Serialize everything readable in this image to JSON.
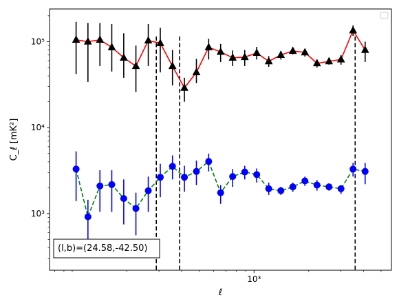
{
  "chart_data": {
    "type": "scatter",
    "xscale": "log",
    "yscale": "log",
    "xlabel": "ℓ",
    "ylabel": "C_ℓ  [mK²]",
    "xlim": [
      75,
      5700
    ],
    "ylim": [
      220,
      240000
    ],
    "x_ticks": [
      {
        "value": 1000,
        "label": "10³"
      }
    ],
    "y_ticks": [
      {
        "value": 1000,
        "label": "10³"
      },
      {
        "value": 10000,
        "label": "10⁴"
      },
      {
        "value": 100000,
        "label": "10⁵"
      }
    ],
    "legend": {
      "placement": "top-right",
      "entries": []
    },
    "annotation": "(l,b)=(24.58,-42.50)",
    "vlines": [
      290,
      390,
      3600
    ],
    "series": [
      {
        "color": "#000000",
        "line_color": "#ff0000",
        "marker": "triangle",
        "linestyle": "solid",
        "points": [
          {
            "x": 105,
            "y": 105000,
            "ylo": 42000,
            "yhi": 170000
          },
          {
            "x": 122,
            "y": 100000,
            "ylo": 34000,
            "yhi": 165000
          },
          {
            "x": 142,
            "y": 105000,
            "ylo": 52000,
            "yhi": 165000
          },
          {
            "x": 165,
            "y": 86000,
            "ylo": 45000,
            "yhi": 160000
          },
          {
            "x": 192,
            "y": 65000,
            "ylo": 38000,
            "yhi": 125000
          },
          {
            "x": 224,
            "y": 52000,
            "ylo": 26000,
            "yhi": 90000
          },
          {
            "x": 262,
            "y": 103000,
            "ylo": 52000,
            "yhi": 160000
          },
          {
            "x": 305,
            "y": 96000,
            "ylo": 44000,
            "yhi": 145000
          },
          {
            "x": 356,
            "y": 52000,
            "ylo": 31000,
            "yhi": 80000
          },
          {
            "x": 414,
            "y": 29000,
            "ylo": 20000,
            "yhi": 38000
          },
          {
            "x": 482,
            "y": 44000,
            "ylo": 33000,
            "yhi": 63000
          },
          {
            "x": 563,
            "y": 86000,
            "ylo": 62000,
            "yhi": 108000
          },
          {
            "x": 655,
            "y": 76000,
            "ylo": 58000,
            "yhi": 94000
          },
          {
            "x": 763,
            "y": 65000,
            "ylo": 52000,
            "yhi": 79000
          },
          {
            "x": 889,
            "y": 66000,
            "ylo": 52000,
            "yhi": 80000
          },
          {
            "x": 1035,
            "y": 74000,
            "ylo": 62000,
            "yhi": 87000
          },
          {
            "x": 1205,
            "y": 59000,
            "ylo": 51000,
            "yhi": 68000
          },
          {
            "x": 1405,
            "y": 70000,
            "ylo": 62000,
            "yhi": 78000
          },
          {
            "x": 1635,
            "y": 78000,
            "ylo": 71000,
            "yhi": 86000
          },
          {
            "x": 1905,
            "y": 75000,
            "ylo": 67000,
            "yhi": 82000
          },
          {
            "x": 2220,
            "y": 56000,
            "ylo": 50000,
            "yhi": 62000
          },
          {
            "x": 2585,
            "y": 59000,
            "ylo": 54000,
            "yhi": 65000
          },
          {
            "x": 3010,
            "y": 62000,
            "ylo": 54000,
            "yhi": 70000
          },
          {
            "x": 3505,
            "y": 135000,
            "ylo": 117000,
            "yhi": 155000
          },
          {
            "x": 4085,
            "y": 80000,
            "ylo": 58000,
            "yhi": 100000
          }
        ]
      },
      {
        "color": "#0000ff",
        "line_color": "#008000",
        "marker": "circle",
        "linestyle": "dashed",
        "points": [
          {
            "x": 105,
            "y": 3300,
            "ylo": 1400,
            "yhi": 5300
          },
          {
            "x": 122,
            "y": 920,
            "ylo": 400,
            "yhi": 1450
          },
          {
            "x": 142,
            "y": 2100,
            "ylo": 1050,
            "yhi": 3200
          },
          {
            "x": 165,
            "y": 2180,
            "ylo": 1050,
            "yhi": 3200
          },
          {
            "x": 192,
            "y": 1500,
            "ylo": 750,
            "yhi": 2500
          },
          {
            "x": 224,
            "y": 1150,
            "ylo": 560,
            "yhi": 1750
          },
          {
            "x": 262,
            "y": 1850,
            "ylo": 1050,
            "yhi": 2700
          },
          {
            "x": 305,
            "y": 2650,
            "ylo": 1550,
            "yhi": 3800
          },
          {
            "x": 356,
            "y": 3550,
            "ylo": 2500,
            "yhi": 4750
          },
          {
            "x": 414,
            "y": 2650,
            "ylo": 1800,
            "yhi": 3600
          },
          {
            "x": 482,
            "y": 3100,
            "ylo": 2150,
            "yhi": 4150
          },
          {
            "x": 563,
            "y": 4050,
            "ylo": 3100,
            "yhi": 5000
          },
          {
            "x": 655,
            "y": 1750,
            "ylo": 1300,
            "yhi": 2150
          },
          {
            "x": 763,
            "y": 2700,
            "ylo": 2050,
            "yhi": 3300
          },
          {
            "x": 889,
            "y": 3050,
            "ylo": 2500,
            "yhi": 3600
          },
          {
            "x": 1035,
            "y": 2850,
            "ylo": 2300,
            "yhi": 3350
          },
          {
            "x": 1205,
            "y": 1950,
            "ylo": 1650,
            "yhi": 2300
          },
          {
            "x": 1405,
            "y": 1850,
            "ylo": 1650,
            "yhi": 2050
          },
          {
            "x": 1635,
            "y": 2050,
            "ylo": 1800,
            "yhi": 2300
          },
          {
            "x": 1905,
            "y": 2400,
            "ylo": 2100,
            "yhi": 2700
          },
          {
            "x": 2220,
            "y": 2150,
            "ylo": 1850,
            "yhi": 2450
          },
          {
            "x": 2585,
            "y": 2050,
            "ylo": 1850,
            "yhi": 2250
          },
          {
            "x": 3010,
            "y": 1950,
            "ylo": 1700,
            "yhi": 2150
          },
          {
            "x": 3505,
            "y": 3300,
            "ylo": 2700,
            "yhi": 3900
          },
          {
            "x": 4085,
            "y": 3100,
            "ylo": 2200,
            "yhi": 3900
          }
        ]
      }
    ]
  }
}
